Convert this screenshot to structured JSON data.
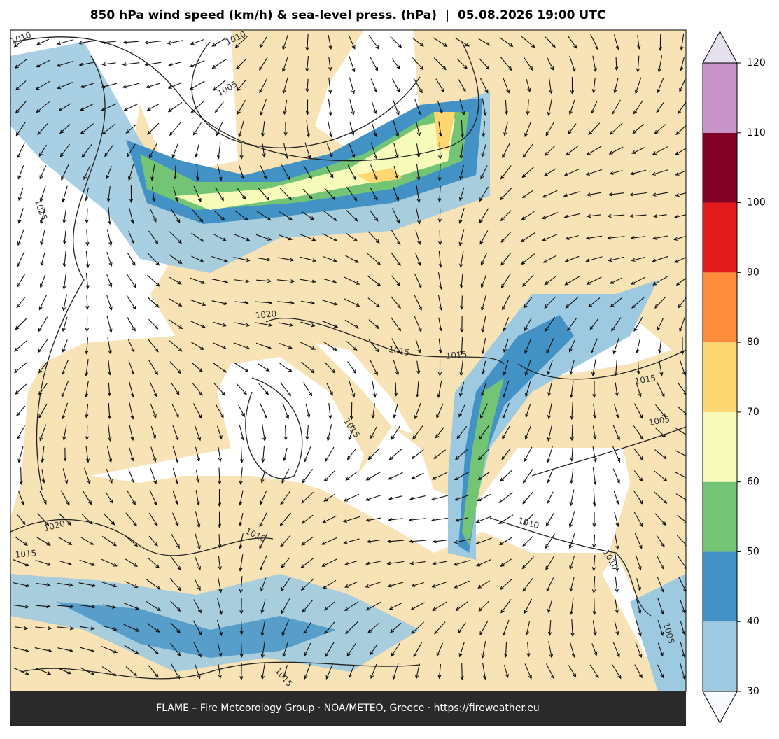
{
  "title": "850 hPa wind speed (km/h) & sea-level press. (hPa)  |  05.08.2026 19:00 UTC",
  "footer": "FLAME – Fire Meteorology Group · NOA/METEO, Greece · https://fireweather.eu",
  "colorbar": {
    "ticks": [
      30,
      40,
      50,
      60,
      70,
      80,
      90,
      100,
      110,
      120
    ],
    "colors": [
      "#9ecae1",
      "#4292c6",
      "#74c476",
      "#f7fbb9",
      "#fed672",
      "#fd8d3c",
      "#e31a1c",
      "#800026",
      "#c994c7"
    ],
    "over_color": "#e7e1ef",
    "under_color": "#f7fbff"
  },
  "isobar_labels": [
    "1010",
    "1010",
    "1005",
    "1025",
    "1020",
    "1015",
    "1015",
    "1015",
    "1015",
    "1005",
    "1010",
    "1020",
    "1015",
    "1010",
    "1010",
    "1005",
    "1015"
  ]
}
